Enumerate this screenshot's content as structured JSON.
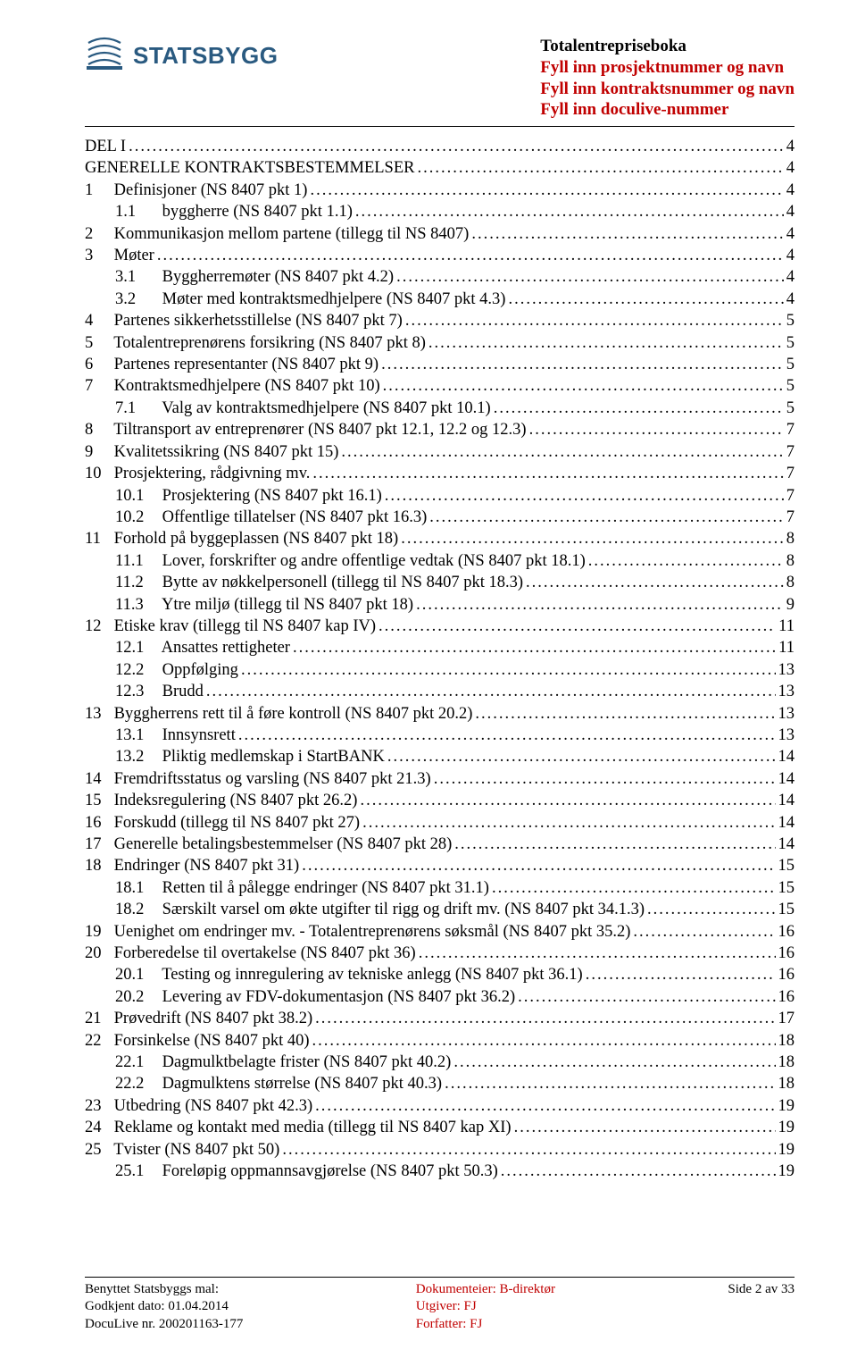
{
  "header": {
    "logo_text": "STATSBYGG",
    "logo_color": "#2a5a80",
    "title_line1": "Totalentrepriseboka",
    "title_line2": "Fyll inn prosjektnummer og navn",
    "title_line3": "Fyll inn kontraktsnummer og navn",
    "title_line4": "Fyll inn doculive-nummer"
  },
  "toc": [
    {
      "level": 0,
      "num": "",
      "text": "DEL I",
      "page": "4"
    },
    {
      "level": 0,
      "num": "",
      "text": "GENERELLE KONTRAKTSBESTEMMELSER",
      "page": "4"
    },
    {
      "level": 1,
      "num": "1",
      "text": "Definisjoner (NS 8407 pkt 1)",
      "page": "4"
    },
    {
      "level": 2,
      "num": "1.1",
      "text": "byggherre (NS 8407 pkt 1.1)",
      "page": "4"
    },
    {
      "level": 1,
      "num": "2",
      "text": "Kommunikasjon mellom partene (tillegg til NS 8407)",
      "page": "4"
    },
    {
      "level": 1,
      "num": "3",
      "text": "Møter",
      "page": "4"
    },
    {
      "level": 2,
      "num": "3.1",
      "text": "Byggherremøter (NS 8407 pkt 4.2)",
      "page": "4"
    },
    {
      "level": 2,
      "num": "3.2",
      "text": "Møter med kontraktsmedhjelpere (NS 8407 pkt 4.3)",
      "page": "4"
    },
    {
      "level": 1,
      "num": "4",
      "text": "Partenes sikkerhetsstillelse (NS 8407 pkt 7)",
      "page": "5"
    },
    {
      "level": 1,
      "num": "5",
      "text": "Totalentreprenørens forsikring (NS 8407 pkt 8)",
      "page": "5"
    },
    {
      "level": 1,
      "num": "6",
      "text": "Partenes representanter (NS 8407 pkt 9)",
      "page": "5"
    },
    {
      "level": 1,
      "num": "7",
      "text": "Kontraktsmedhjelpere (NS 8407 pkt 10)",
      "page": "5"
    },
    {
      "level": 2,
      "num": "7.1",
      "text": "Valg av kontraktsmedhjelpere (NS 8407 pkt 10.1)",
      "page": "5"
    },
    {
      "level": 1,
      "num": "8",
      "text": "Tiltransport av entreprenører (NS 8407 pkt 12.1, 12.2 og 12.3)",
      "page": "7"
    },
    {
      "level": 1,
      "num": "9",
      "text": "Kvalitetssikring (NS 8407 pkt 15)",
      "page": "7"
    },
    {
      "level": 1,
      "num": "10",
      "text": "Prosjektering, rådgivning mv.",
      "page": "7"
    },
    {
      "level": 2,
      "num": "10.1",
      "text": "Prosjektering (NS 8407 pkt 16.1)",
      "page": "7"
    },
    {
      "level": 2,
      "num": "10.2",
      "text": "Offentlige tillatelser (NS 8407 pkt 16.3)",
      "page": "7"
    },
    {
      "level": 1,
      "num": "11",
      "text": "Forhold på byggeplassen (NS 8407 pkt 18)",
      "page": "8"
    },
    {
      "level": 2,
      "num": "11.1",
      "text": "Lover, forskrifter og andre offentlige vedtak (NS 8407 pkt 18.1)",
      "page": "8"
    },
    {
      "level": 2,
      "num": "11.2",
      "text": "Bytte av nøkkelpersonell (tillegg til NS 8407 pkt 18.3)",
      "page": "8"
    },
    {
      "level": 2,
      "num": "11.3",
      "text": "Ytre miljø (tillegg til NS 8407 pkt 18)",
      "page": "9"
    },
    {
      "level": 1,
      "num": "12",
      "text": "Etiske krav (tillegg til NS 8407 kap IV)",
      "page": "11"
    },
    {
      "level": 2,
      "num": "12.1",
      "text": "Ansattes rettigheter",
      "page": "11"
    },
    {
      "level": 2,
      "num": "12.2",
      "text": "Oppfølging",
      "page": "13"
    },
    {
      "level": 2,
      "num": "12.3",
      "text": "Brudd",
      "page": "13"
    },
    {
      "level": 1,
      "num": "13",
      "text": "Byggherrens rett til å føre kontroll (NS 8407 pkt 20.2)",
      "page": "13"
    },
    {
      "level": 2,
      "num": "13.1",
      "text": "Innsynsrett",
      "page": "13"
    },
    {
      "level": 2,
      "num": "13.2",
      "text": "Pliktig medlemskap i StartBANK",
      "page": "14"
    },
    {
      "level": 1,
      "num": "14",
      "text": "Fremdriftsstatus og varsling (NS 8407 pkt 21.3)",
      "page": "14"
    },
    {
      "level": 1,
      "num": "15",
      "text": "Indeksregulering (NS 8407 pkt 26.2)",
      "page": "14"
    },
    {
      "level": 1,
      "num": "16",
      "text": "Forskudd (tillegg til NS 8407 pkt 27)",
      "page": "14"
    },
    {
      "level": 1,
      "num": "17",
      "text": "Generelle betalingsbestemmelser (NS 8407 pkt 28)",
      "page": "14"
    },
    {
      "level": 1,
      "num": "18",
      "text": "Endringer (NS 8407 pkt 31)",
      "page": "15"
    },
    {
      "level": 2,
      "num": "18.1",
      "text": "Retten til å pålegge endringer (NS 8407 pkt 31.1)",
      "page": "15"
    },
    {
      "level": 2,
      "num": "18.2",
      "text": "Særskilt varsel om økte utgifter til rigg og drift mv. (NS 8407 pkt 34.1.3)",
      "page": "15"
    },
    {
      "level": 1,
      "num": "19",
      "text": "Uenighet om endringer mv. - Totalentreprenørens søksmål (NS 8407 pkt 35.2)",
      "page": "16"
    },
    {
      "level": 1,
      "num": "20",
      "text": "Forberedelse til overtakelse (NS 8407 pkt 36)",
      "page": "16"
    },
    {
      "level": 2,
      "num": "20.1",
      "text": "Testing og innregulering av tekniske anlegg (NS 8407 pkt 36.1)",
      "page": "16"
    },
    {
      "level": 2,
      "num": "20.2",
      "text": "Levering av FDV-dokumentasjon (NS 8407 pkt 36.2)",
      "page": "16"
    },
    {
      "level": 1,
      "num": "21",
      "text": "Prøvedrift (NS 8407 pkt 38.2)",
      "page": "17"
    },
    {
      "level": 1,
      "num": "22",
      "text": "Forsinkelse (NS 8407 pkt 40)",
      "page": "18"
    },
    {
      "level": 2,
      "num": "22.1",
      "text": "Dagmulktbelagte frister (NS 8407 pkt 40.2)",
      "page": "18"
    },
    {
      "level": 2,
      "num": "22.2",
      "text": "Dagmulktens størrelse (NS 8407 pkt 40.3)",
      "page": "18"
    },
    {
      "level": 1,
      "num": "23",
      "text": "Utbedring (NS 8407 pkt 42.3)",
      "page": "19"
    },
    {
      "level": 1,
      "num": "24",
      "text": "Reklame og kontakt med media (tillegg til NS 8407 kap XI)",
      "page": "19"
    },
    {
      "level": 1,
      "num": "25",
      "text": "Tvister (NS 8407 pkt 50)",
      "page": "19"
    },
    {
      "level": 2,
      "num": "25.1",
      "text": "Foreløpig oppmannsavgjørelse (NS 8407 pkt 50.3)",
      "page": "19"
    }
  ],
  "footer": {
    "left_line1": "Benyttet Statsbyggs mal:",
    "left_line2": "Godkjent dato: 01.04.2014",
    "left_line3": "DocuLive nr. 200201163-177",
    "mid_line1": "Dokumenteier: B-direktør",
    "mid_line2": "Utgiver: FJ",
    "mid_line3": "Forfatter: FJ",
    "right_line1": "Side 2 av 33"
  }
}
